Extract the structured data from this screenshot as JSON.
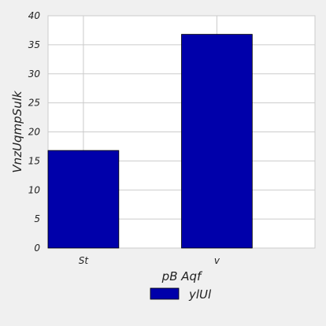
{
  "chart_data": {
    "type": "bar",
    "categories": [
      "St",
      "v"
    ],
    "series": [
      {
        "name": "ylUl",
        "values": [
          16.8,
          36.8
        ],
        "color": "#0000aa"
      }
    ],
    "xlabel": "pB Aqf",
    "ylabel": "VnzUqmpSulk",
    "ylim": [
      0,
      40
    ],
    "yticks": [
      0,
      5,
      10,
      15,
      20,
      25,
      30,
      35,
      40
    ],
    "grid": true,
    "legend_position": "bottom-center",
    "colors": {
      "background": "#f0f0f0",
      "plot_background": "#ffffff",
      "grid": "#cbcbcb"
    }
  }
}
